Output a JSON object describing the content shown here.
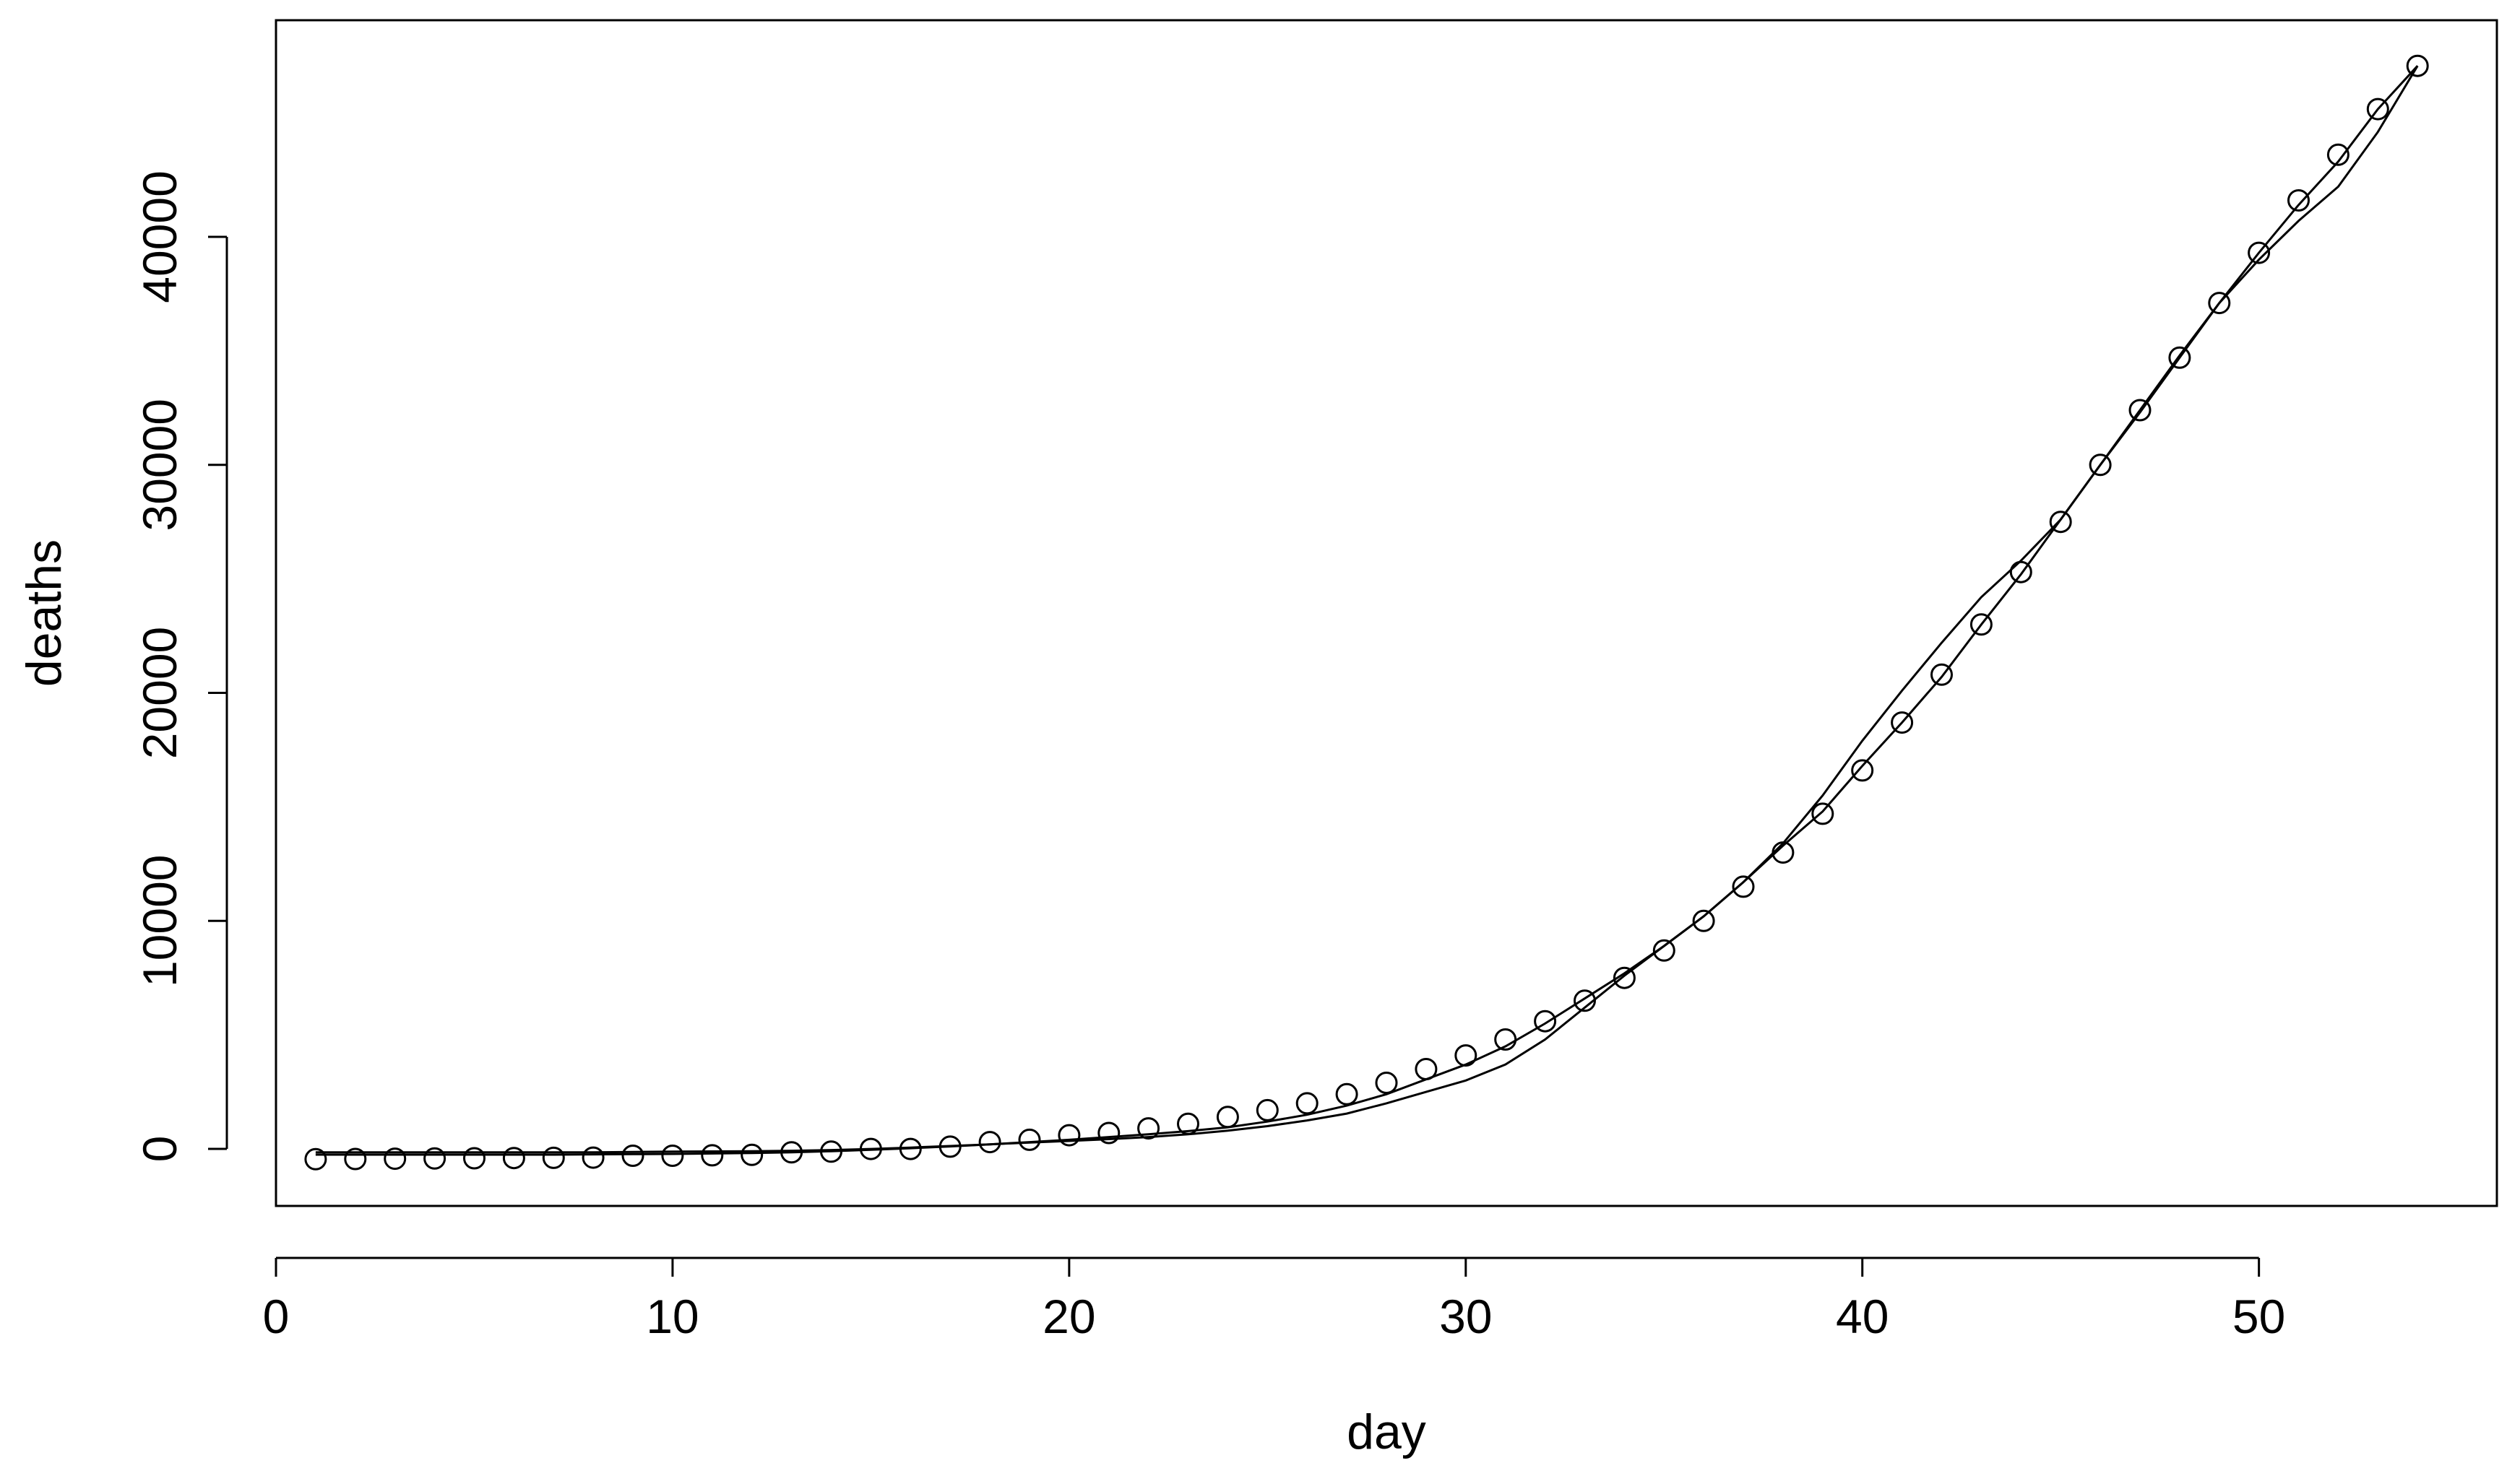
{
  "chart_data": {
    "type": "scatter",
    "title": "",
    "xlabel": "day",
    "ylabel": "deaths",
    "xlim": [
      0,
      56
    ],
    "ylim": [
      -2500,
      49500
    ],
    "x_ticks": [
      0,
      10,
      20,
      30,
      40,
      50
    ],
    "y_ticks": [
      0,
      10000,
      20000,
      30000,
      40000
    ],
    "x_tick_labels": [
      "0",
      "10",
      "20",
      "30",
      "40",
      "50"
    ],
    "y_tick_labels": [
      "0",
      "10000",
      "20000",
      "30000",
      "40000"
    ],
    "grid": false,
    "legend": "none",
    "line_color": "#000000",
    "points": {
      "x": [
        1,
        2,
        3,
        4,
        5,
        6,
        7,
        8,
        9,
        10,
        11,
        12,
        13,
        14,
        15,
        16,
        17,
        18,
        19,
        20,
        21,
        22,
        23,
        24,
        25,
        26,
        27,
        28,
        29,
        30,
        31,
        32,
        33,
        34,
        35,
        36,
        37,
        38,
        39,
        40,
        41,
        42,
        43,
        44,
        45,
        46,
        47,
        48,
        49,
        50,
        51,
        52,
        53,
        54
      ],
      "y": [
        -450,
        -440,
        -430,
        -420,
        -410,
        -400,
        -390,
        -380,
        -300,
        -300,
        -280,
        -260,
        -150,
        -120,
        0,
        0,
        100,
        300,
        400,
        600,
        700,
        900,
        1100,
        1400,
        1700,
        2000,
        2400,
        2900,
        3500,
        4100,
        4800,
        5600,
        6500,
        7500,
        8700,
        10000,
        11500,
        13000,
        14700,
        16600,
        18700,
        20800,
        23000,
        25300,
        27500,
        30000,
        32400,
        34700,
        37100,
        39300,
        41600,
        43600,
        45600,
        47500
      ]
    },
    "series": [
      {
        "x": [
          1,
          2,
          3,
          4,
          5,
          6,
          7,
          8,
          9,
          10,
          11,
          12,
          13,
          14,
          15,
          16,
          17,
          18,
          19,
          20,
          21,
          22,
          23,
          24,
          25,
          26,
          27,
          28,
          29,
          30,
          31,
          32,
          33,
          34,
          35,
          36,
          37,
          38,
          39,
          40,
          41,
          42,
          43,
          44,
          45,
          46,
          47,
          48,
          49,
          50,
          51,
          52,
          53,
          54
        ],
        "y": [
          -150,
          -150,
          -150,
          -150,
          -150,
          -150,
          -150,
          -150,
          -130,
          -120,
          -110,
          -100,
          -80,
          -50,
          0,
          60,
          130,
          200,
          280,
          350,
          430,
          520,
          640,
          800,
          1000,
          1250,
          1550,
          2000,
          2500,
          3000,
          3700,
          4800,
          6200,
          7600,
          8900,
          10200,
          11700,
          13400,
          15500,
          17900,
          20100,
          22200,
          24200,
          25800,
          27600,
          30000,
          32400,
          34800,
          37100,
          39000,
          40700,
          42200,
          44600,
          47500
        ]
      },
      {
        "x": [
          1,
          2,
          3,
          4,
          5,
          6,
          7,
          8,
          9,
          10,
          11,
          12,
          13,
          14,
          15,
          16,
          17,
          18,
          19,
          20,
          21,
          22,
          23,
          24,
          25,
          26,
          27,
          28,
          29,
          30,
          31,
          32,
          33,
          34,
          35,
          36,
          37,
          38,
          39,
          40,
          41,
          42,
          43,
          44,
          45,
          46,
          47,
          48,
          49,
          50,
          51,
          52,
          53,
          54
        ],
        "y": [
          -250,
          -250,
          -250,
          -250,
          -250,
          -250,
          -250,
          -240,
          -230,
          -220,
          -200,
          -180,
          -150,
          -100,
          -40,
          30,
          110,
          200,
          300,
          400,
          520,
          640,
          780,
          950,
          1200,
          1500,
          1900,
          2400,
          3050,
          3700,
          4500,
          5500,
          6600,
          7700,
          8900,
          10200,
          11700,
          13300,
          14800,
          16800,
          18700,
          20700,
          23000,
          25200,
          27600,
          30000,
          32300,
          34700,
          37100,
          39300,
          41400,
          43300,
          45600,
          47500
        ]
      }
    ]
  }
}
